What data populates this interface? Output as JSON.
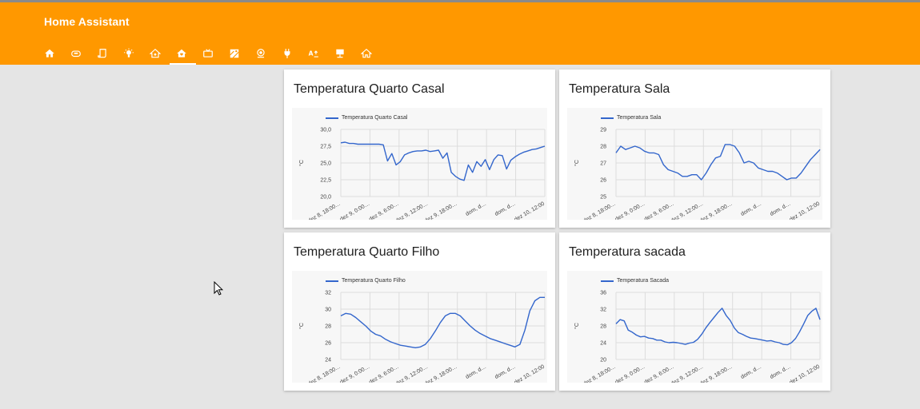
{
  "app": {
    "title": "Home Assistant"
  },
  "tabs": [
    {
      "icon": "home-icon"
    },
    {
      "icon": "robot-vacuum-icon"
    },
    {
      "icon": "script-icon"
    },
    {
      "icon": "lightbulb-icon"
    },
    {
      "icon": "home-automation-icon"
    },
    {
      "icon": "home-heart-icon",
      "active": true
    },
    {
      "icon": "tv-icon"
    },
    {
      "icon": "map-icon"
    },
    {
      "icon": "camera-icon"
    },
    {
      "icon": "plug-icon"
    },
    {
      "icon": "translate-icon"
    },
    {
      "icon": "desk-icon"
    },
    {
      "icon": "home-outline-icon"
    }
  ],
  "colors": {
    "accent": "#ff9800",
    "line": "#3366cc"
  },
  "cards": [
    {
      "title": "Temperatura Quarto Casal",
      "chart_data": {
        "type": "line",
        "series": [
          {
            "name": "Temperatura Quarto Casal",
            "values": [
              28.0,
              28.1,
              27.9,
              27.9,
              27.8,
              27.8,
              27.8,
              27.8,
              27.8,
              27.8,
              27.7,
              25.3,
              26.4,
              24.7,
              25.2,
              26.2,
              26.5,
              26.7,
              26.8,
              26.8,
              26.9,
              26.7,
              26.8,
              26.9,
              25.7,
              26.5,
              23.6,
              23.0,
              22.6,
              22.4,
              24.7,
              23.6,
              25.2,
              24.5,
              25.5,
              24.0,
              25.5,
              26.2,
              26.1,
              24.1,
              25.4,
              25.9,
              26.3,
              26.6,
              26.8,
              27.0,
              27.1,
              27.3,
              27.5
            ]
          }
        ],
        "x_tick_labels": [
          "dez 8, 18:00…",
          "dez 9, 0:00…",
          "dez 9, 6:00…",
          "dez 9, 12:00…",
          "dez 9, 18:00…",
          "dom, d…",
          "dom, d…",
          "dez 10, 12:00"
        ],
        "y_ticks": [
          "20,0",
          "22,5",
          "25,0",
          "27,5",
          "30,0"
        ],
        "ylim": [
          20,
          30
        ],
        "ylabel": "°C",
        "grid": true,
        "legend": "top-left"
      }
    },
    {
      "title": "Temperatura Sala",
      "chart_data": {
        "type": "line",
        "series": [
          {
            "name": "Temperatura Sala",
            "values": [
              27.6,
              28.0,
              27.8,
              27.9,
              28.0,
              27.9,
              27.7,
              27.6,
              27.6,
              27.5,
              26.9,
              26.6,
              26.5,
              26.4,
              26.2,
              26.2,
              26.3,
              26.3,
              26.0,
              26.4,
              26.9,
              27.3,
              27.4,
              28.1,
              28.1,
              28.0,
              27.6,
              27.0,
              27.1,
              27.0,
              26.7,
              26.6,
              26.5,
              26.5,
              26.4,
              26.2,
              26.0,
              26.1,
              26.1,
              26.4,
              26.8,
              27.2,
              27.5,
              27.8
            ]
          }
        ],
        "x_tick_labels": [
          "dez 8, 18:00…",
          "dez 9, 0:00…",
          "dez 9, 6:00…",
          "dez 9, 12:00…",
          "dez 9, 18:00…",
          "dom, d…",
          "dom, d…",
          "dez 10, 12:00"
        ],
        "y_ticks": [
          "25",
          "26",
          "27",
          "28",
          "29"
        ],
        "ylim": [
          25,
          29
        ],
        "ylabel": "°C",
        "grid": true,
        "legend": "top-left"
      }
    },
    {
      "title": "Temperatura Quarto Filho",
      "chart_data": {
        "type": "line",
        "series": [
          {
            "name": "Temperatura Quarto Filho",
            "values": [
              29.2,
              29.5,
              29.4,
              29.0,
              28.5,
              28.0,
              27.4,
              27.0,
              26.8,
              26.4,
              26.1,
              25.9,
              25.7,
              25.6,
              25.5,
              25.4,
              25.5,
              25.8,
              26.5,
              27.4,
              28.4,
              29.2,
              29.5,
              29.5,
              29.2,
              28.6,
              28.0,
              27.5,
              27.1,
              26.8,
              26.5,
              26.3,
              26.1,
              25.9,
              25.7,
              25.5,
              25.8,
              27.5,
              29.8,
              31.0,
              31.4,
              31.4
            ]
          }
        ],
        "x_tick_labels": [
          "dez 8, 18:00…",
          "dez 9, 0:00…",
          "dez 9, 6:00…",
          "dez 9, 12:00…",
          "dez 9, 18:00…",
          "dom, d…",
          "dom, d…",
          "dez 10, 12:00"
        ],
        "y_ticks": [
          "24",
          "26",
          "28",
          "30",
          "32"
        ],
        "ylim": [
          24,
          32
        ],
        "ylabel": "°C",
        "grid": true,
        "legend": "top-left"
      }
    },
    {
      "title": "Temperatura sacada",
      "chart_data": {
        "type": "line",
        "series": [
          {
            "name": "Temperatura Sacada",
            "values": [
              28.5,
              29.5,
              29.2,
              27.0,
              26.5,
              25.8,
              25.4,
              25.5,
              25.1,
              25.0,
              24.6,
              24.6,
              24.2,
              24.0,
              24.1,
              24.0,
              23.8,
              23.6,
              23.9,
              24.1,
              24.8,
              26.0,
              27.5,
              28.8,
              30.0,
              31.2,
              32.2,
              30.5,
              29.3,
              27.5,
              26.4,
              26.0,
              25.5,
              25.1,
              25.0,
              24.8,
              24.6,
              24.4,
              24.5,
              24.2,
              24.0,
              23.6,
              23.5,
              24.0,
              25.0,
              26.6,
              28.5,
              30.5,
              31.5,
              32.2,
              29.5
            ]
          }
        ],
        "x_tick_labels": [
          "dez 8, 18:00…",
          "dez 9, 0:00…",
          "dez 9, 6:00…",
          "dez 9, 12:00…",
          "dez 9, 18:00…",
          "dom, d…",
          "dom, d…",
          "dez 10, 12:00"
        ],
        "y_ticks": [
          "20",
          "24",
          "28",
          "32",
          "36"
        ],
        "ylim": [
          20,
          36
        ],
        "ylabel": "°C",
        "grid": true,
        "legend": "top-left"
      }
    }
  ]
}
